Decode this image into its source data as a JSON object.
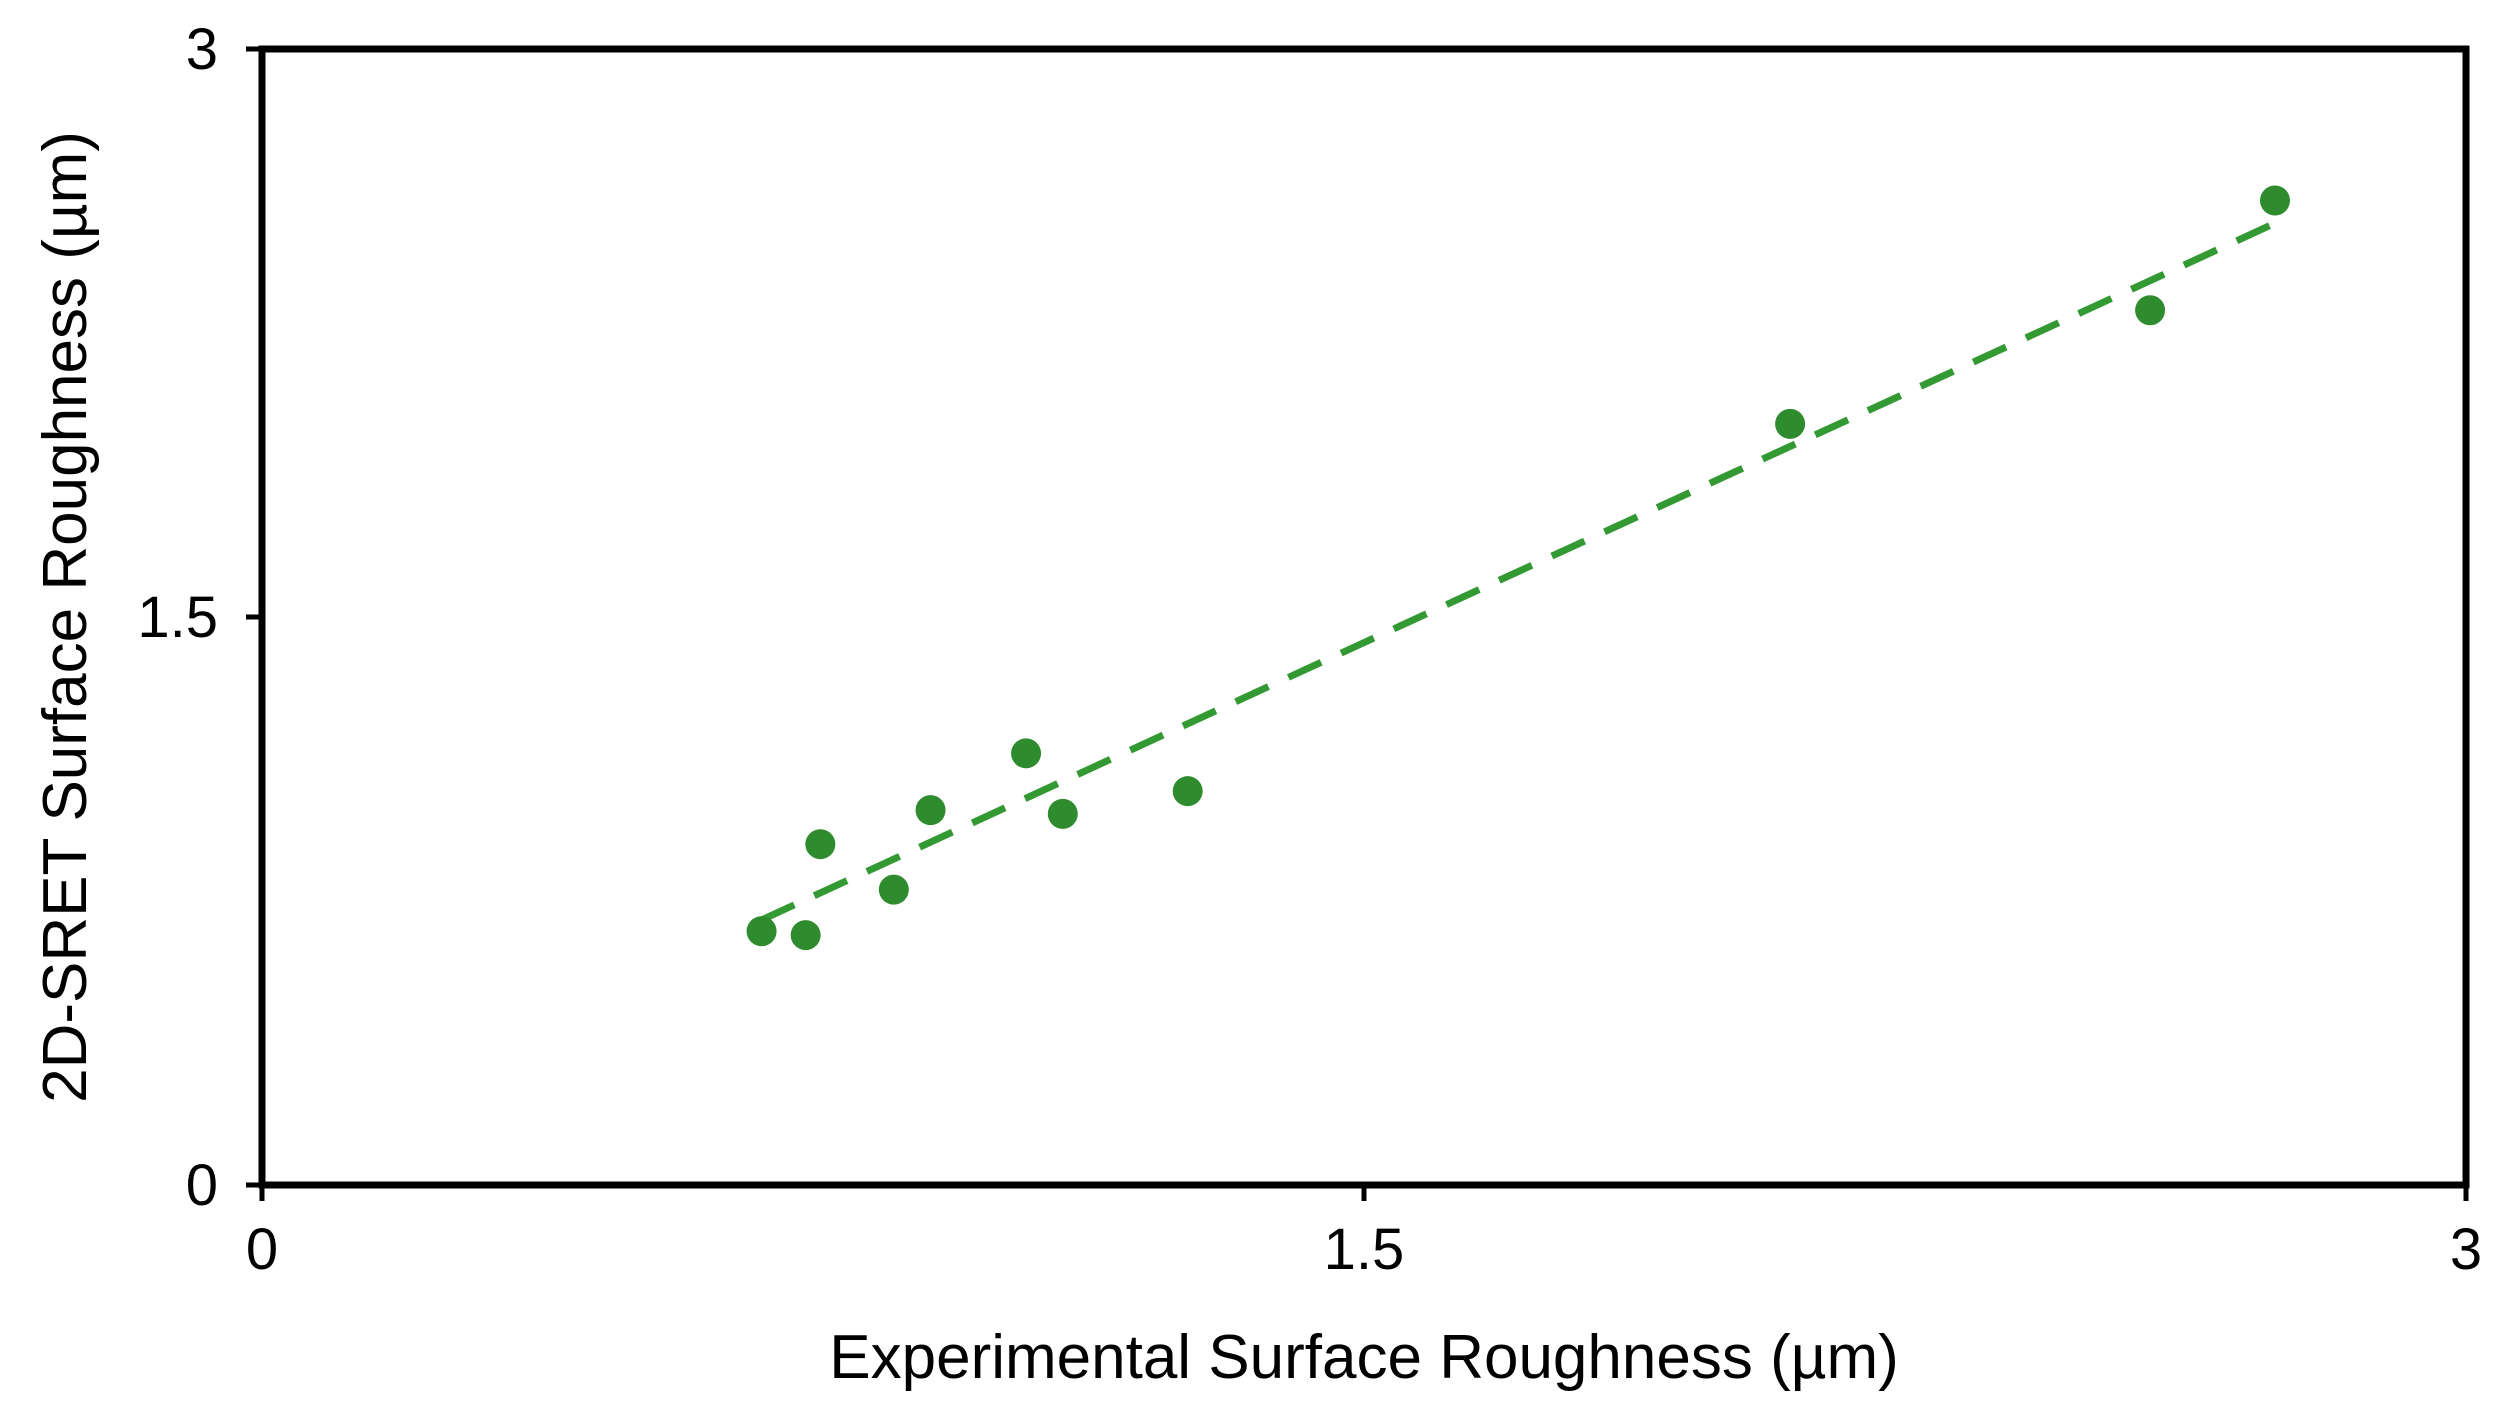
{
  "chart_data": {
    "type": "scatter",
    "title": "",
    "xlabel": "Experimental Surface Roughness (µm)",
    "ylabel": "2D-SRET Surface Roughness (µm)",
    "xlim": [
      0,
      3
    ],
    "ylim": [
      0,
      3
    ],
    "xticks": [
      0,
      1.5,
      3
    ],
    "yticks": [
      0,
      1.5,
      3
    ],
    "xtick_labels": [
      "0",
      "1.5",
      "3"
    ],
    "ytick_labels": [
      "0",
      "1.5",
      "3"
    ],
    "grid": false,
    "legend": "none",
    "series": [
      {
        "marker_color": "#2e8b2e",
        "points": [
          {
            "x": 0.68,
            "y": 0.67
          },
          {
            "x": 0.74,
            "y": 0.66
          },
          {
            "x": 0.76,
            "y": 0.9
          },
          {
            "x": 0.86,
            "y": 0.78
          },
          {
            "x": 0.91,
            "y": 0.99
          },
          {
            "x": 1.04,
            "y": 1.14
          },
          {
            "x": 1.09,
            "y": 0.98
          },
          {
            "x": 1.26,
            "y": 1.04
          },
          {
            "x": 2.08,
            "y": 2.01
          },
          {
            "x": 2.57,
            "y": 2.31
          },
          {
            "x": 2.74,
            "y": 2.6
          }
        ]
      }
    ],
    "trendline": {
      "style": "dashed",
      "color": "#339933",
      "x": [
        0.68,
        2.74
      ],
      "y": [
        0.7,
        2.54
      ]
    }
  }
}
